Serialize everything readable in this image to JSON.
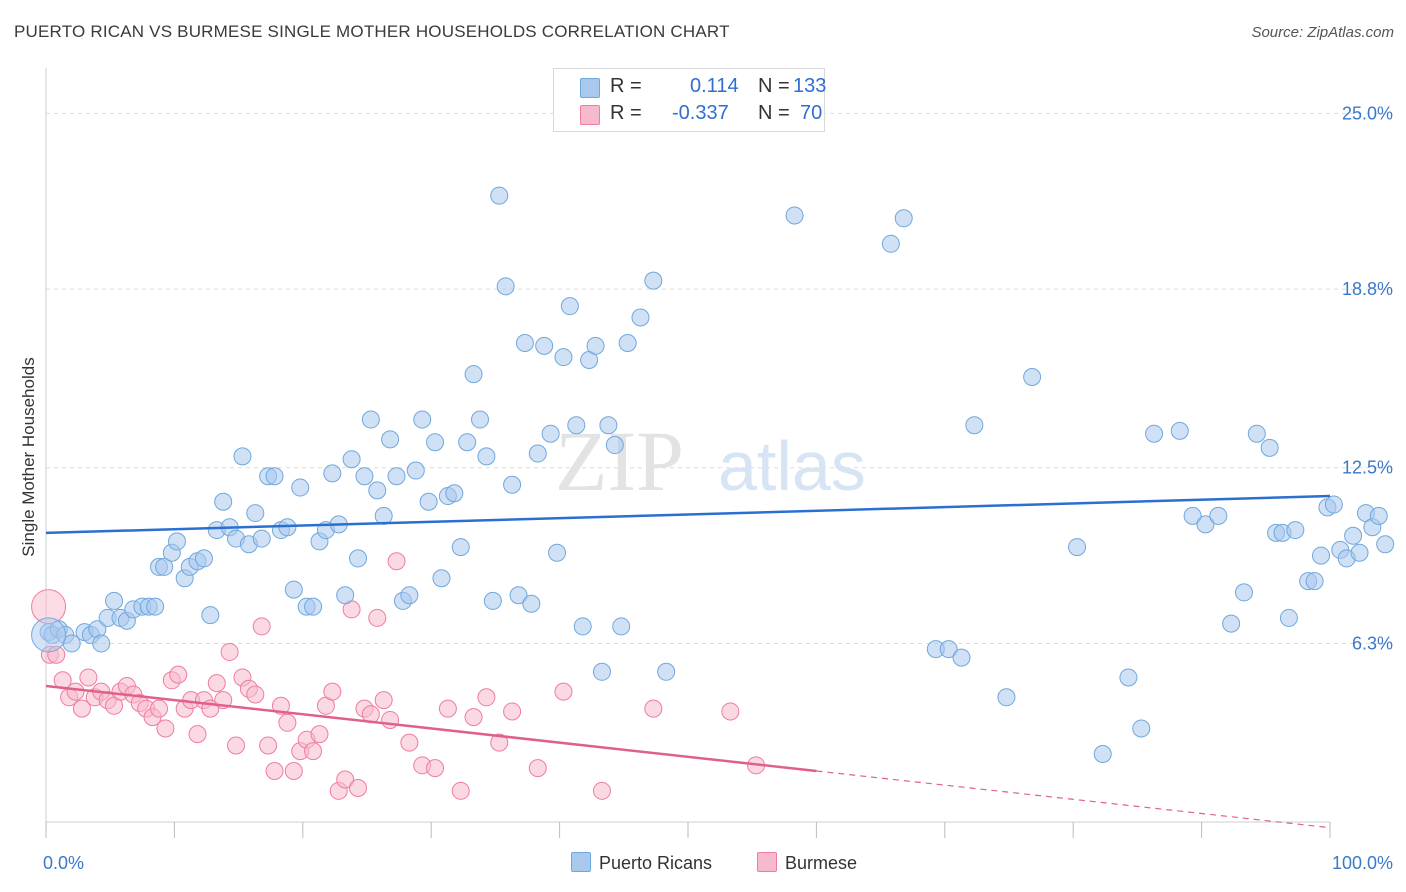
{
  "header": {
    "title": "PUERTO RICAN VS BURMESE SINGLE MOTHER HOUSEHOLDS CORRELATION CHART",
    "source": "Source: ZipAtlas.com"
  },
  "legend": {
    "rows": [
      {
        "r_label": "R =",
        "r_value": "0.114",
        "n_label": "N =",
        "n_value": "133"
      },
      {
        "r_label": "R =",
        "r_value": "-0.337",
        "n_label": "N =",
        "n_value": "70"
      }
    ]
  },
  "watermark": {
    "zip": "ZIP",
    "atlas": "atlas"
  },
  "colors": {
    "blue": "#6fa8dc",
    "blue_fill": "#a9c8ee",
    "blue_line": "#2b6fd1",
    "pink": "#f07ca0",
    "pink_fill": "#f7b9cc",
    "pink_line": "#e0608c",
    "tick_label": "#3a78c9",
    "grid": "#dcdcdc"
  },
  "chart_data": {
    "type": "scatter",
    "title": "PUERTO RICAN VS BURMESE SINGLE MOTHER HOUSEHOLDS CORRELATION CHART",
    "xlabel": "",
    "ylabel": "Single Mother Households",
    "xlim": [
      0,
      100
    ],
    "ylim": [
      0,
      26.25
    ],
    "x_tick_labels": [
      "0.0%",
      "100.0%"
    ],
    "y_ticks": [
      6.3,
      12.5,
      18.8,
      25.0
    ],
    "y_tick_labels": [
      "6.3%",
      "12.5%",
      "18.8%",
      "25.0%"
    ],
    "grid": true,
    "legend_position": "bottom",
    "series": [
      {
        "name": "Puerto Ricans",
        "r": 0.114,
        "n": 133,
        "trend": {
          "x": [
            0,
            100
          ],
          "y": [
            10.2,
            11.5
          ]
        },
        "points": [
          [
            0.2,
            6.7
          ],
          [
            0.5,
            6.6
          ],
          [
            1.0,
            6.8
          ],
          [
            1.5,
            6.6
          ],
          [
            2.0,
            6.3
          ],
          [
            3.0,
            6.7
          ],
          [
            3.5,
            6.6
          ],
          [
            4.0,
            6.8
          ],
          [
            4.3,
            6.3
          ],
          [
            4.8,
            7.2
          ],
          [
            5.3,
            7.8
          ],
          [
            5.8,
            7.2
          ],
          [
            6.3,
            7.1
          ],
          [
            6.8,
            7.5
          ],
          [
            7.5,
            7.6
          ],
          [
            8.0,
            7.6
          ],
          [
            8.5,
            7.6
          ],
          [
            8.8,
            9.0
          ],
          [
            9.2,
            9.0
          ],
          [
            9.8,
            9.5
          ],
          [
            10.2,
            9.9
          ],
          [
            10.8,
            8.6
          ],
          [
            11.2,
            9.0
          ],
          [
            11.8,
            9.2
          ],
          [
            12.3,
            9.3
          ],
          [
            12.8,
            7.3
          ],
          [
            13.3,
            10.3
          ],
          [
            13.8,
            11.3
          ],
          [
            14.3,
            10.4
          ],
          [
            14.8,
            10.0
          ],
          [
            15.3,
            12.9
          ],
          [
            15.8,
            9.8
          ],
          [
            16.3,
            10.9
          ],
          [
            16.8,
            10.0
          ],
          [
            17.3,
            12.2
          ],
          [
            17.8,
            12.2
          ],
          [
            18.3,
            10.3
          ],
          [
            18.8,
            10.4
          ],
          [
            19.3,
            8.2
          ],
          [
            19.8,
            11.8
          ],
          [
            20.3,
            7.6
          ],
          [
            20.8,
            7.6
          ],
          [
            21.3,
            9.9
          ],
          [
            21.8,
            10.3
          ],
          [
            22.3,
            12.3
          ],
          [
            22.8,
            10.5
          ],
          [
            23.3,
            8.0
          ],
          [
            23.8,
            12.8
          ],
          [
            24.3,
            9.3
          ],
          [
            24.8,
            12.2
          ],
          [
            25.3,
            14.2
          ],
          [
            25.8,
            11.7
          ],
          [
            26.3,
            10.8
          ],
          [
            26.8,
            13.5
          ],
          [
            27.3,
            12.2
          ],
          [
            27.8,
            7.8
          ],
          [
            28.3,
            8.0
          ],
          [
            28.8,
            12.4
          ],
          [
            29.3,
            14.2
          ],
          [
            29.8,
            11.3
          ],
          [
            30.3,
            13.4
          ],
          [
            30.8,
            8.6
          ],
          [
            31.3,
            11.5
          ],
          [
            31.8,
            11.6
          ],
          [
            32.3,
            9.7
          ],
          [
            32.8,
            13.4
          ],
          [
            33.3,
            15.8
          ],
          [
            33.8,
            14.2
          ],
          [
            34.3,
            12.9
          ],
          [
            34.8,
            7.8
          ],
          [
            35.3,
            22.1
          ],
          [
            35.8,
            18.9
          ],
          [
            36.3,
            11.9
          ],
          [
            36.8,
            8.0
          ],
          [
            37.3,
            16.9
          ],
          [
            37.8,
            7.7
          ],
          [
            38.3,
            13.0
          ],
          [
            38.8,
            16.8
          ],
          [
            39.3,
            13.7
          ],
          [
            39.8,
            9.5
          ],
          [
            40.3,
            16.4
          ],
          [
            40.8,
            18.2
          ],
          [
            41.3,
            14.0
          ],
          [
            41.8,
            6.9
          ],
          [
            42.3,
            16.3
          ],
          [
            42.8,
            16.8
          ],
          [
            43.3,
            5.3
          ],
          [
            43.8,
            14.0
          ],
          [
            44.3,
            13.3
          ],
          [
            44.8,
            6.9
          ],
          [
            45.3,
            16.9
          ],
          [
            46.3,
            17.8
          ],
          [
            47.3,
            19.1
          ],
          [
            48.3,
            5.3
          ],
          [
            58.3,
            21.4
          ],
          [
            65.8,
            20.4
          ],
          [
            66.8,
            21.3
          ],
          [
            69.3,
            6.1
          ],
          [
            70.3,
            6.1
          ],
          [
            71.3,
            5.8
          ],
          [
            72.3,
            14.0
          ],
          [
            74.8,
            4.4
          ],
          [
            76.8,
            15.7
          ],
          [
            80.3,
            9.7
          ],
          [
            82.3,
            2.4
          ],
          [
            84.3,
            5.1
          ],
          [
            85.3,
            3.3
          ],
          [
            86.3,
            13.7
          ],
          [
            88.3,
            13.8
          ],
          [
            89.3,
            10.8
          ],
          [
            90.3,
            10.5
          ],
          [
            91.3,
            10.8
          ],
          [
            92.3,
            7.0
          ],
          [
            93.3,
            8.1
          ],
          [
            94.3,
            13.7
          ],
          [
            95.3,
            13.2
          ],
          [
            95.8,
            10.2
          ],
          [
            96.3,
            10.2
          ],
          [
            96.8,
            7.2
          ],
          [
            97.3,
            10.3
          ],
          [
            98.3,
            8.5
          ],
          [
            98.8,
            8.5
          ],
          [
            99.3,
            9.4
          ],
          [
            99.8,
            11.1
          ],
          [
            100.3,
            11.2
          ],
          [
            100.8,
            9.6
          ],
          [
            101.3,
            9.3
          ],
          [
            101.8,
            10.1
          ],
          [
            102.3,
            9.5
          ],
          [
            102.8,
            10.9
          ],
          [
            103.3,
            10.4
          ],
          [
            103.8,
            10.8
          ],
          [
            104.3,
            9.8
          ]
        ],
        "points_large": [
          [
            0.2,
            6.6
          ]
        ]
      },
      {
        "name": "Burmese",
        "r": -0.337,
        "n": 70,
        "trend": {
          "x": [
            0,
            60
          ],
          "y": [
            4.8,
            1.8
          ]
        },
        "trend_dashed": {
          "x": [
            60,
            100
          ],
          "y": [
            1.8,
            -0.2
          ]
        },
        "points": [
          [
            0.3,
            5.9
          ],
          [
            0.8,
            5.9
          ],
          [
            1.3,
            5.0
          ],
          [
            1.8,
            4.4
          ],
          [
            2.3,
            4.6
          ],
          [
            2.8,
            4.0
          ],
          [
            3.3,
            5.1
          ],
          [
            3.8,
            4.4
          ],
          [
            4.3,
            4.6
          ],
          [
            4.8,
            4.3
          ],
          [
            5.3,
            4.1
          ],
          [
            5.8,
            4.6
          ],
          [
            6.3,
            4.8
          ],
          [
            6.8,
            4.5
          ],
          [
            7.3,
            4.2
          ],
          [
            7.8,
            4.0
          ],
          [
            8.3,
            3.7
          ],
          [
            8.8,
            4.0
          ],
          [
            9.3,
            3.3
          ],
          [
            9.8,
            5.0
          ],
          [
            10.3,
            5.2
          ],
          [
            10.8,
            4.0
          ],
          [
            11.3,
            4.3
          ],
          [
            11.8,
            3.1
          ],
          [
            12.3,
            4.3
          ],
          [
            12.8,
            4.0
          ],
          [
            13.3,
            4.9
          ],
          [
            13.8,
            4.3
          ],
          [
            14.3,
            6.0
          ],
          [
            14.8,
            2.7
          ],
          [
            15.3,
            5.1
          ],
          [
            15.8,
            4.7
          ],
          [
            16.3,
            4.5
          ],
          [
            16.8,
            6.9
          ],
          [
            17.3,
            2.7
          ],
          [
            17.8,
            1.8
          ],
          [
            18.3,
            4.1
          ],
          [
            18.8,
            3.5
          ],
          [
            19.3,
            1.8
          ],
          [
            19.8,
            2.5
          ],
          [
            20.3,
            2.9
          ],
          [
            20.8,
            2.5
          ],
          [
            21.3,
            3.1
          ],
          [
            21.8,
            4.1
          ],
          [
            22.3,
            4.6
          ],
          [
            22.8,
            1.1
          ],
          [
            23.3,
            1.5
          ],
          [
            23.8,
            7.5
          ],
          [
            24.3,
            1.2
          ],
          [
            24.8,
            4.0
          ],
          [
            25.3,
            3.8
          ],
          [
            25.8,
            7.2
          ],
          [
            26.3,
            4.3
          ],
          [
            26.8,
            3.6
          ],
          [
            27.3,
            9.2
          ],
          [
            28.3,
            2.8
          ],
          [
            29.3,
            2.0
          ],
          [
            30.3,
            1.9
          ],
          [
            31.3,
            4.0
          ],
          [
            32.3,
            1.1
          ],
          [
            33.3,
            3.7
          ],
          [
            34.3,
            4.4
          ],
          [
            35.3,
            2.8
          ],
          [
            36.3,
            3.9
          ],
          [
            38.3,
            1.9
          ],
          [
            40.3,
            4.6
          ],
          [
            43.3,
            1.1
          ],
          [
            47.3,
            4.0
          ],
          [
            53.3,
            3.9
          ],
          [
            55.3,
            2.0
          ]
        ],
        "points_large": [
          [
            0.2,
            7.6
          ]
        ]
      }
    ]
  }
}
